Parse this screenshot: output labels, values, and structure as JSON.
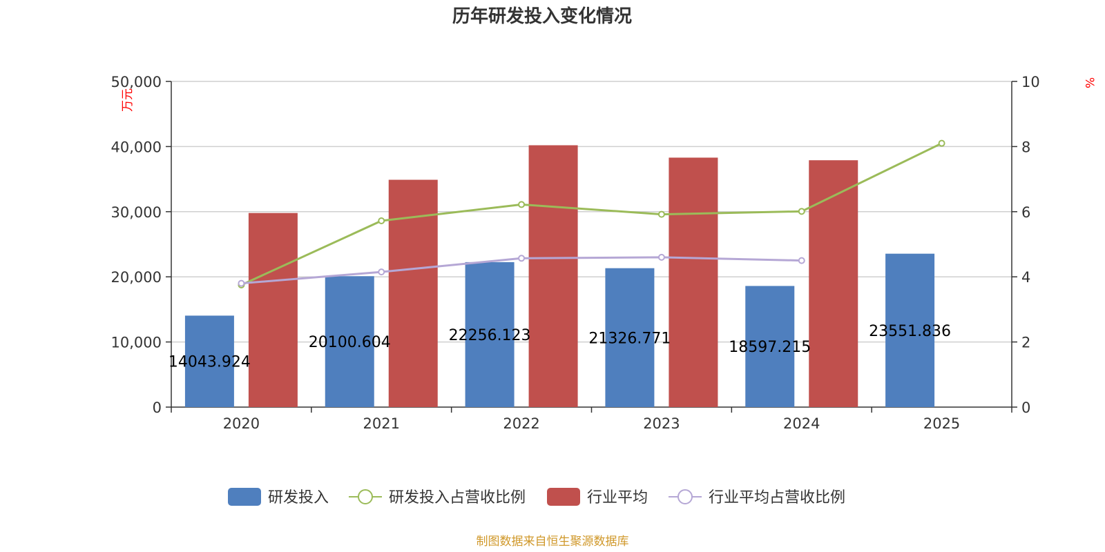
{
  "chart_data": {
    "type": "bar",
    "title": "历年研发投入变化情况",
    "categories": [
      "2020",
      "2021",
      "2022",
      "2023",
      "2024",
      "2025"
    ],
    "y_left": {
      "unit": "万元",
      "range": [
        0,
        50000
      ],
      "ticks": [
        "0",
        "10,000",
        "20,000",
        "30,000",
        "40,000",
        "50,000"
      ]
    },
    "y_right": {
      "unit": "%",
      "range": [
        0,
        10
      ],
      "ticks": [
        "0",
        "2",
        "4",
        "6",
        "8",
        "10"
      ]
    },
    "grid": true,
    "legend_position": "bottom",
    "series": [
      {
        "name": "研发投入",
        "type": "bar",
        "axis": "left",
        "color": "#4f7fbe",
        "values": [
          14043.924,
          20100.604,
          22256.123,
          21326.771,
          18597.215,
          23551.836
        ],
        "labels": [
          "14043.924",
          "20100.604",
          "22256.123",
          "21326.771",
          "18597.215",
          "23551.836"
        ]
      },
      {
        "name": "研发投入占营收比例",
        "type": "line",
        "axis": "right",
        "color": "#9bbb59",
        "values": [
          3.75,
          5.72,
          6.22,
          5.92,
          6.01,
          8.1
        ]
      },
      {
        "name": "行业平均",
        "type": "bar",
        "axis": "left",
        "color": "#c0504d",
        "values": [
          29800,
          34900,
          40200,
          38300,
          37900,
          null
        ]
      },
      {
        "name": "行业平均占营收比例",
        "type": "line",
        "axis": "right",
        "color": "#b5a7d5",
        "values": [
          3.8,
          4.15,
          4.57,
          4.6,
          4.5,
          null
        ]
      }
    ]
  },
  "source": "制图数据来自恒生聚源数据库"
}
